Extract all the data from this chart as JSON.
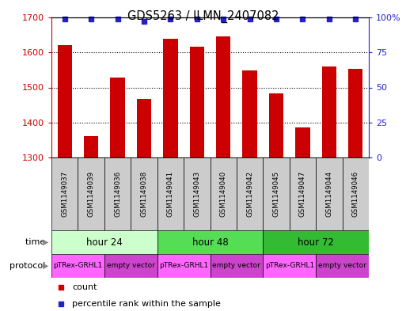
{
  "title": "GDS5263 / ILMN_2407082",
  "samples": [
    "GSM1149037",
    "GSM1149039",
    "GSM1149036",
    "GSM1149038",
    "GSM1149041",
    "GSM1149043",
    "GSM1149040",
    "GSM1149042",
    "GSM1149045",
    "GSM1149047",
    "GSM1149044",
    "GSM1149046"
  ],
  "counts": [
    1622,
    1362,
    1528,
    1468,
    1638,
    1617,
    1645,
    1548,
    1484,
    1385,
    1559,
    1554
  ],
  "percentiles": [
    99,
    99,
    99,
    97,
    99,
    99,
    99,
    99,
    99,
    99,
    99,
    99
  ],
  "ylim": [
    1300,
    1700
  ],
  "yticks": [
    1300,
    1400,
    1500,
    1600,
    1700
  ],
  "right_yticks": [
    0,
    25,
    50,
    75,
    100
  ],
  "bar_color": "#cc0000",
  "dot_color": "#2222cc",
  "time_groups": [
    {
      "label": "hour 24",
      "start": 0,
      "end": 4,
      "color": "#ccffcc"
    },
    {
      "label": "hour 48",
      "start": 4,
      "end": 8,
      "color": "#55dd55"
    },
    {
      "label": "hour 72",
      "start": 8,
      "end": 12,
      "color": "#33bb33"
    }
  ],
  "protocol_groups": [
    {
      "label": "pTRex-GRHL1",
      "start": 0,
      "end": 2,
      "color": "#ff66ff"
    },
    {
      "label": "empty vector",
      "start": 2,
      "end": 4,
      "color": "#cc44cc"
    },
    {
      "label": "pTRex-GRHL1",
      "start": 4,
      "end": 6,
      "color": "#ff66ff"
    },
    {
      "label": "empty vector",
      "start": 6,
      "end": 8,
      "color": "#cc44cc"
    },
    {
      "label": "pTRex-GRHL1",
      "start": 8,
      "end": 10,
      "color": "#ff66ff"
    },
    {
      "label": "empty vector",
      "start": 10,
      "end": 12,
      "color": "#cc44cc"
    }
  ],
  "legend_count_color": "#cc0000",
  "legend_dot_color": "#2222cc",
  "bg_color": "#ffffff",
  "sample_bg_color": "#cccccc",
  "left_axis_color": "#cc0000",
  "right_axis_color": "#2222cc",
  "grid_linestyle": ":",
  "grid_linewidth": 0.8
}
